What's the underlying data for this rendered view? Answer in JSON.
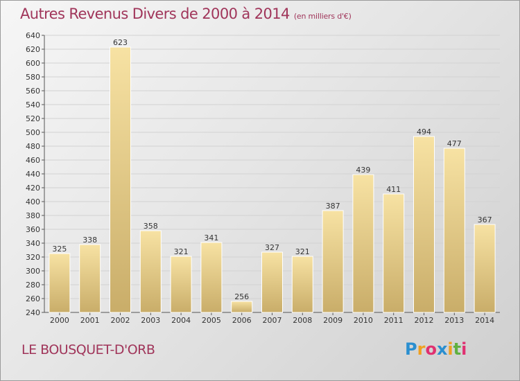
{
  "header": {
    "title": "Autres Revenus Divers de 2000 à 2014",
    "subtitle": "(en milliers d'€)"
  },
  "footer": {
    "place": "LE BOUSQUET-D'ORB",
    "brand": {
      "letters": [
        "P",
        "r",
        "o",
        "x",
        "i",
        "t",
        "i"
      ],
      "colors": [
        "#2a8fd0",
        "#f0a020",
        "#e03070",
        "#2a8fd0",
        "#f0a020",
        "#60b040",
        "#e03070"
      ]
    }
  },
  "chart_data": {
    "type": "bar",
    "categories": [
      "2000",
      "2001",
      "2002",
      "2003",
      "2004",
      "2005",
      "2006",
      "2007",
      "2008",
      "2009",
      "2010",
      "2011",
      "2012",
      "2013",
      "2014"
    ],
    "values": [
      325,
      338,
      623,
      358,
      321,
      341,
      256,
      327,
      321,
      387,
      439,
      411,
      494,
      477,
      367
    ],
    "ylim": [
      240,
      640
    ],
    "yticks": [
      240,
      260,
      280,
      300,
      320,
      340,
      360,
      380,
      400,
      420,
      440,
      460,
      480,
      500,
      520,
      540,
      560,
      580,
      600,
      620,
      640
    ],
    "grid": true,
    "colors": {
      "bar_light": "#f7e2a3",
      "bar_dark": "#c9ad69",
      "text": "#333333",
      "title": "#a0355a"
    }
  }
}
